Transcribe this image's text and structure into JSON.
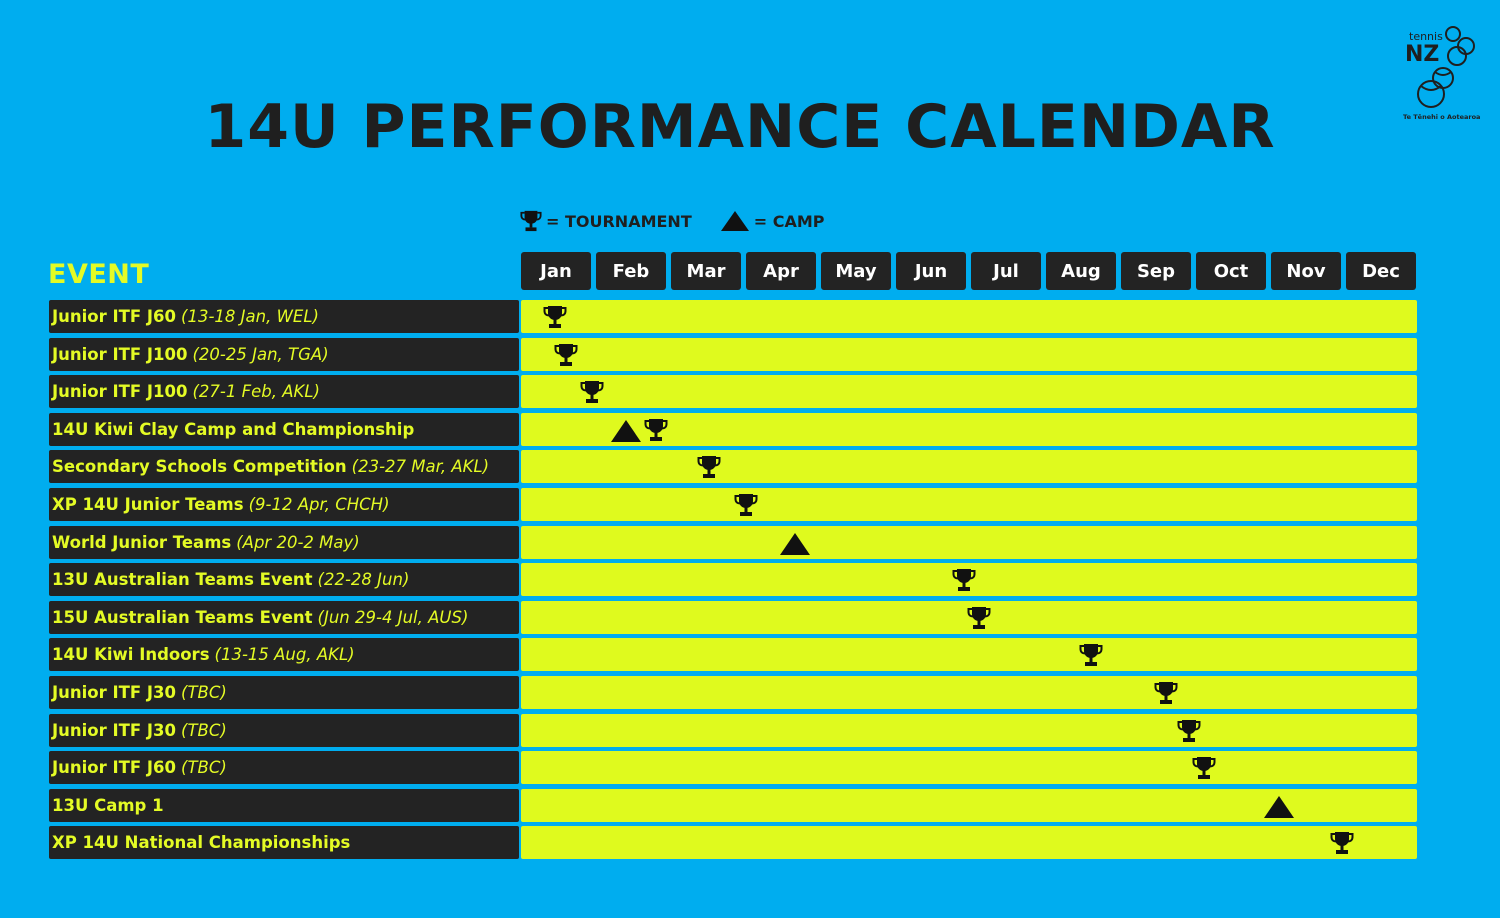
{
  "title": "14U PERFORMANCE CALENDAR",
  "logo": {
    "top_text": "tennis",
    "main_text": "NZ",
    "tagline": "Te Tēnehi o Aotearoa"
  },
  "legend": {
    "tournament": "= TOURNAMENT",
    "camp": "= CAMP"
  },
  "colors": {
    "background": "#00adef",
    "bar": "#dffa1e",
    "label_bg": "#232323",
    "accent_text": "#e4fb25",
    "dark": "#1f1f1f"
  },
  "chart_data": {
    "type": "table",
    "row_header": "EVENT",
    "months": [
      "Jan",
      "Feb",
      "Mar",
      "Apr",
      "May",
      "Jun",
      "Jul",
      "Aug",
      "Sep",
      "Oct",
      "Nov",
      "Dec"
    ],
    "events": [
      {
        "name": "Junior ITF J60",
        "detail": "(13-18 Jan, WEL)",
        "markers": [
          {
            "type": "tournament",
            "month": 1.45
          }
        ]
      },
      {
        "name": "Junior ITF J100",
        "detail": "(20-25 Jan, TGA)",
        "markers": [
          {
            "type": "tournament",
            "month": 1.6
          }
        ]
      },
      {
        "name": "Junior ITF J100",
        "detail": "(27-1 Feb, AKL)",
        "markers": [
          {
            "type": "tournament",
            "month": 1.95
          }
        ]
      },
      {
        "name": "14U Kiwi Clay Camp and Championship",
        "detail": "",
        "markers": [
          {
            "type": "camp",
            "month": 2.4
          },
          {
            "type": "tournament",
            "month": 2.8
          }
        ]
      },
      {
        "name": "Secondary Schools Competition",
        "detail": "(23-27 Mar, AKL)",
        "markers": [
          {
            "type": "tournament",
            "month": 3.5
          }
        ]
      },
      {
        "name": "XP 14U Junior Teams",
        "detail": "(9-12 Apr, CHCH)",
        "markers": [
          {
            "type": "tournament",
            "month": 4.0
          }
        ]
      },
      {
        "name": "World Junior Teams",
        "detail": "(Apr 20-2 May)",
        "markers": [
          {
            "type": "camp",
            "month": 4.65
          }
        ]
      },
      {
        "name": "13U Australian Teams Event",
        "detail": "(22-28 Jun)",
        "markers": [
          {
            "type": "tournament",
            "month": 6.9
          }
        ]
      },
      {
        "name": "15U Australian Teams Event",
        "detail": "(Jun 29-4 Jul, AUS)",
        "markers": [
          {
            "type": "tournament",
            "month": 7.1
          }
        ]
      },
      {
        "name": "14U Kiwi Indoors",
        "detail": "(13-15 Aug, AKL)",
        "markers": [
          {
            "type": "tournament",
            "month": 8.6
          }
        ]
      },
      {
        "name": "Junior ITF J30",
        "detail": "(TBC)",
        "markers": [
          {
            "type": "tournament",
            "month": 9.6
          }
        ]
      },
      {
        "name": "Junior ITF J30",
        "detail": "(TBC)",
        "markers": [
          {
            "type": "tournament",
            "month": 9.9
          }
        ]
      },
      {
        "name": "Junior ITF J60",
        "detail": "(TBC)",
        "markers": [
          {
            "type": "tournament",
            "month": 10.1
          }
        ]
      },
      {
        "name": "13U Camp 1",
        "detail": "",
        "markers": [
          {
            "type": "camp",
            "month": 11.1
          }
        ]
      },
      {
        "name": "XP 14U National Championships",
        "detail": "",
        "markers": [
          {
            "type": "tournament",
            "month": 11.95
          }
        ]
      }
    ]
  }
}
